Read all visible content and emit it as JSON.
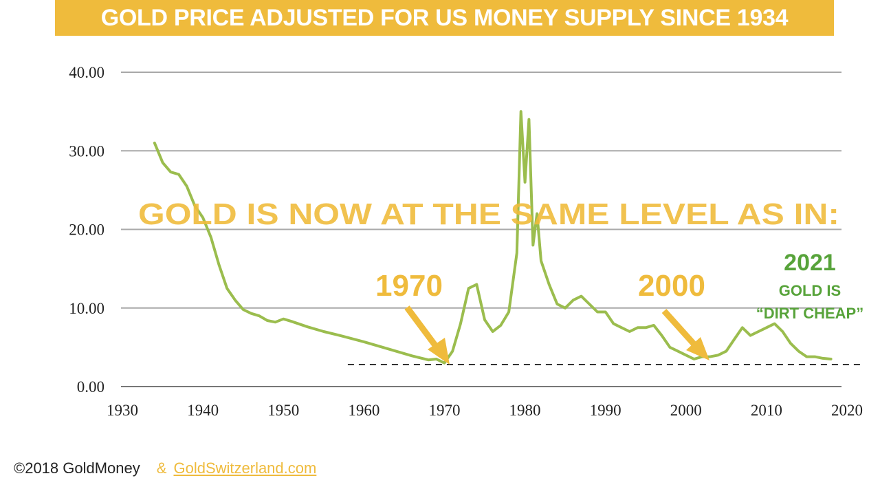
{
  "title": "GOLD PRICE ADJUSTED FOR US MONEY SUPPLY SINCE 1934",
  "colors": {
    "title_bg": "#efbb3c",
    "line": "#9bbd4e",
    "annotation_gold": "#efbb3c",
    "annotation_green": "#57a33a",
    "grid": "#a8a8a8",
    "baseline_dash": "#333333"
  },
  "annotations": {
    "headline": "GOLD IS NOW AT THE SAME LEVEL AS IN:",
    "label_1970": "1970",
    "label_2000": "2000",
    "label_2021": "2021",
    "label_gold_is": "GOLD IS",
    "label_dirt_cheap": "“DIRT CHEAP”"
  },
  "footer": {
    "copyright": "©2018 GoldMoney",
    "ampersand": "&",
    "site": "GoldSwitzerland.com"
  },
  "chart_data": {
    "type": "line",
    "title": "GOLD PRICE ADJUSTED FOR US MONEY SUPPLY SINCE 1934",
    "xlabel": "",
    "ylabel": "",
    "xlim": [
      1930,
      2020
    ],
    "ylim": [
      0,
      40
    ],
    "x_ticks": [
      "1930",
      "1940",
      "1950",
      "1960",
      "1970",
      "1980",
      "1990",
      "2000",
      "2010",
      "2020"
    ],
    "y_ticks": [
      "0.00",
      "10.00",
      "20.00",
      "30.00",
      "40.00"
    ],
    "grid": "horizontal",
    "series": [
      {
        "x": [
          1934,
          1935,
          1936,
          1937,
          1938,
          1939,
          1940,
          1941,
          1942,
          1943,
          1944,
          1945,
          1946,
          1947,
          1948,
          1949,
          1950,
          1951,
          1953,
          1955,
          1957,
          1960,
          1963,
          1966,
          1968,
          1969,
          1970,
          1971,
          1972,
          1973,
          1974,
          1975,
          1976,
          1977,
          1978,
          1979,
          1979.5,
          1980,
          1980.5,
          1981,
          1981.5,
          1982,
          1983,
          1984,
          1985,
          1986,
          1987,
          1988,
          1989,
          1990,
          1991,
          1992,
          1993,
          1994,
          1995,
          1996,
          1997,
          1998,
          1999,
          2000,
          2001,
          2002,
          2003,
          2004,
          2005,
          2006,
          2007,
          2008,
          2009,
          2010,
          2011,
          2012,
          2013,
          2014,
          2015,
          2016,
          2017,
          2018
        ],
        "values": [
          31.0,
          28.5,
          27.3,
          27.0,
          25.5,
          23.0,
          21.5,
          19.0,
          15.5,
          12.5,
          11.0,
          9.8,
          9.3,
          9.0,
          8.4,
          8.2,
          8.6,
          8.3,
          7.6,
          7.0,
          6.5,
          5.7,
          4.8,
          3.9,
          3.4,
          3.5,
          3.0,
          4.5,
          8.0,
          12.5,
          13.0,
          8.5,
          7.0,
          7.8,
          9.5,
          17.0,
          35.0,
          26.0,
          34.0,
          18.0,
          22.0,
          16.0,
          13.0,
          10.5,
          10.0,
          11.0,
          11.5,
          10.5,
          9.5,
          9.5,
          8.0,
          7.5,
          7.0,
          7.5,
          7.5,
          7.8,
          6.5,
          5.0,
          4.5,
          4.0,
          3.5,
          3.8,
          3.8,
          4.0,
          4.5,
          6.0,
          7.5,
          6.5,
          7.0,
          7.5,
          8.0,
          7.0,
          5.5,
          4.5,
          3.8,
          3.8,
          3.6,
          3.5
        ]
      }
    ],
    "reference_line": {
      "style": "dashed",
      "y": 2.8,
      "x_range": [
        1958,
        2020
      ]
    }
  }
}
